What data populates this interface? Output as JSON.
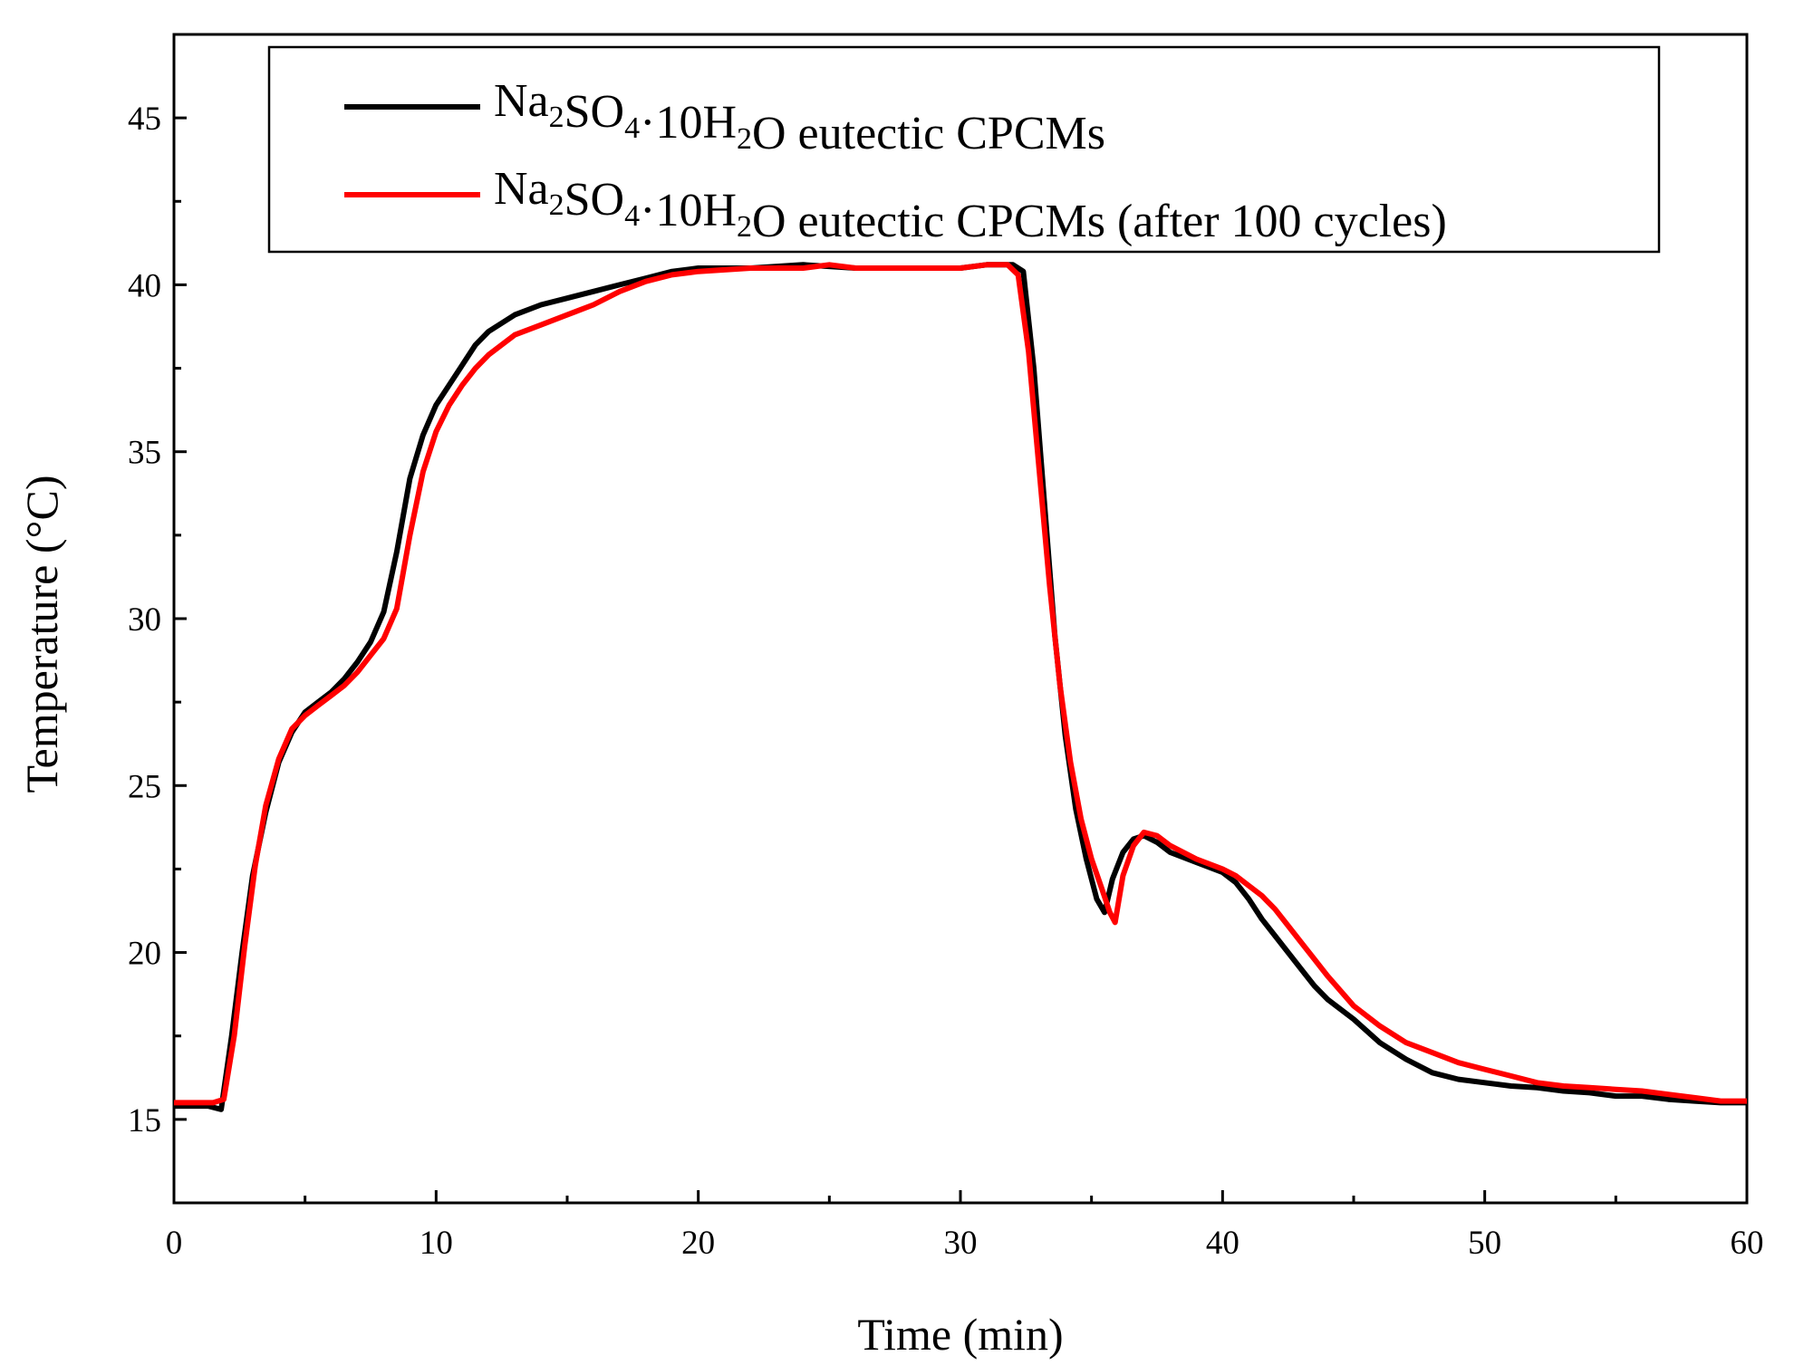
{
  "chart_data": {
    "type": "line",
    "xlabel": "Time (min)",
    "ylabel": "Temperature (°C)",
    "xlim": [
      0,
      60
    ],
    "ylim": [
      12.5,
      47.5
    ],
    "x_ticks": [
      0,
      10,
      20,
      30,
      40,
      50,
      60
    ],
    "y_ticks": [
      15,
      20,
      25,
      30,
      35,
      40,
      45
    ],
    "grid": false,
    "legend_position": "top",
    "series": [
      {
        "name": "Na2SO4·10H2O eutectic CPCMs",
        "legend_parts": [
          {
            "t": "Na"
          },
          {
            "t": "2",
            "sub": true
          },
          {
            "t": "SO"
          },
          {
            "t": "4",
            "sub": true
          },
          {
            "t": "·10H"
          },
          {
            "t": "2",
            "sub": true
          },
          {
            "t": "O eutectic CPCMs"
          }
        ],
        "color": "#000000",
        "x": [
          0,
          1.3,
          1.8,
          2.2,
          2.6,
          3.0,
          3.5,
          4.0,
          4.5,
          5.0,
          5.5,
          6.0,
          6.5,
          7.0,
          7.5,
          8.0,
          8.5,
          9.0,
          9.5,
          10.0,
          10.5,
          11.0,
          11.5,
          12.0,
          13.0,
          14.0,
          15.0,
          16.0,
          17.0,
          18.0,
          19.0,
          20.0,
          22.0,
          24.0,
          26.0,
          28.0,
          30.0,
          31.0,
          32.0,
          32.4,
          32.8,
          33.2,
          33.6,
          34.0,
          34.4,
          34.8,
          35.2,
          35.5,
          35.8,
          36.2,
          36.6,
          37.0,
          37.5,
          38.0,
          39.0,
          40.0,
          40.5,
          41.0,
          41.5,
          42.0,
          42.5,
          43.0,
          43.5,
          44.0,
          45.0,
          46.0,
          47.0,
          48.0,
          49.0,
          50.0,
          51.0,
          52.0,
          53.0,
          54.0,
          55.0,
          56.0,
          57.0,
          58.0,
          59.0,
          60.0
        ],
        "y": [
          15.4,
          15.4,
          15.3,
          17.5,
          20.0,
          22.3,
          24.2,
          25.7,
          26.6,
          27.2,
          27.5,
          27.8,
          28.2,
          28.7,
          29.3,
          30.2,
          32.0,
          34.2,
          35.5,
          36.4,
          37.0,
          37.6,
          38.2,
          38.6,
          39.1,
          39.4,
          39.6,
          39.8,
          40.0,
          40.2,
          40.4,
          40.5,
          40.5,
          40.6,
          40.5,
          40.5,
          40.5,
          40.6,
          40.6,
          40.4,
          37.5,
          33.5,
          29.5,
          26.5,
          24.3,
          22.8,
          21.6,
          21.2,
          22.2,
          23.0,
          23.4,
          23.5,
          23.3,
          23.0,
          22.7,
          22.4,
          22.1,
          21.6,
          21.0,
          20.5,
          20.0,
          19.5,
          19.0,
          18.6,
          18.0,
          17.3,
          16.8,
          16.4,
          16.2,
          16.1,
          16.0,
          15.95,
          15.85,
          15.8,
          15.7,
          15.7,
          15.6,
          15.55,
          15.5,
          15.5
        ]
      },
      {
        "name": "Na2SO4·10H2O eutectic CPCMs (after 100 cycles)",
        "legend_parts": [
          {
            "t": "Na"
          },
          {
            "t": "2",
            "sub": true
          },
          {
            "t": "SO"
          },
          {
            "t": "4",
            "sub": true
          },
          {
            "t": "·10H"
          },
          {
            "t": "2",
            "sub": true
          },
          {
            "t": "O eutectic CPCMs (after 100 cycles)"
          }
        ],
        "color": "#ff0000",
        "x": [
          0,
          1.5,
          1.9,
          2.3,
          2.7,
          3.1,
          3.5,
          4.0,
          4.5,
          5.0,
          5.5,
          6.0,
          6.5,
          7.0,
          7.5,
          8.0,
          8.5,
          9.0,
          9.5,
          10.0,
          10.5,
          11.0,
          11.5,
          12.0,
          13.0,
          14.0,
          15.0,
          16.0,
          17.0,
          18.0,
          19.0,
          20.0,
          22.0,
          24.0,
          25.0,
          26.0,
          28.0,
          30.0,
          31.0,
          31.8,
          32.2,
          32.6,
          33.0,
          33.4,
          33.8,
          34.2,
          34.6,
          35.0,
          35.4,
          35.7,
          35.9,
          36.2,
          36.6,
          37.0,
          37.5,
          38.0,
          39.0,
          40.0,
          40.5,
          41.0,
          41.5,
          42.0,
          42.5,
          43.0,
          43.5,
          44.0,
          45.0,
          46.0,
          47.0,
          48.0,
          49.0,
          50.0,
          51.0,
          52.0,
          53.0,
          54.0,
          55.0,
          56.0,
          57.0,
          58.0,
          59.0,
          60.0
        ],
        "y": [
          15.5,
          15.5,
          15.6,
          17.5,
          20.2,
          22.6,
          24.4,
          25.8,
          26.7,
          27.1,
          27.4,
          27.7,
          28.0,
          28.4,
          28.9,
          29.4,
          30.3,
          32.5,
          34.4,
          35.6,
          36.4,
          37.0,
          37.5,
          37.9,
          38.5,
          38.8,
          39.1,
          39.4,
          39.8,
          40.1,
          40.3,
          40.4,
          40.5,
          40.5,
          40.6,
          40.5,
          40.5,
          40.5,
          40.6,
          40.6,
          40.3,
          38.0,
          34.5,
          31.0,
          28.0,
          25.7,
          24.0,
          22.8,
          21.9,
          21.2,
          20.9,
          22.3,
          23.2,
          23.6,
          23.5,
          23.2,
          22.8,
          22.5,
          22.3,
          22.0,
          21.7,
          21.3,
          20.8,
          20.3,
          19.8,
          19.3,
          18.4,
          17.8,
          17.3,
          17.0,
          16.7,
          16.5,
          16.3,
          16.1,
          16.0,
          15.95,
          15.9,
          15.85,
          15.75,
          15.65,
          15.55,
          15.55
        ]
      }
    ]
  }
}
